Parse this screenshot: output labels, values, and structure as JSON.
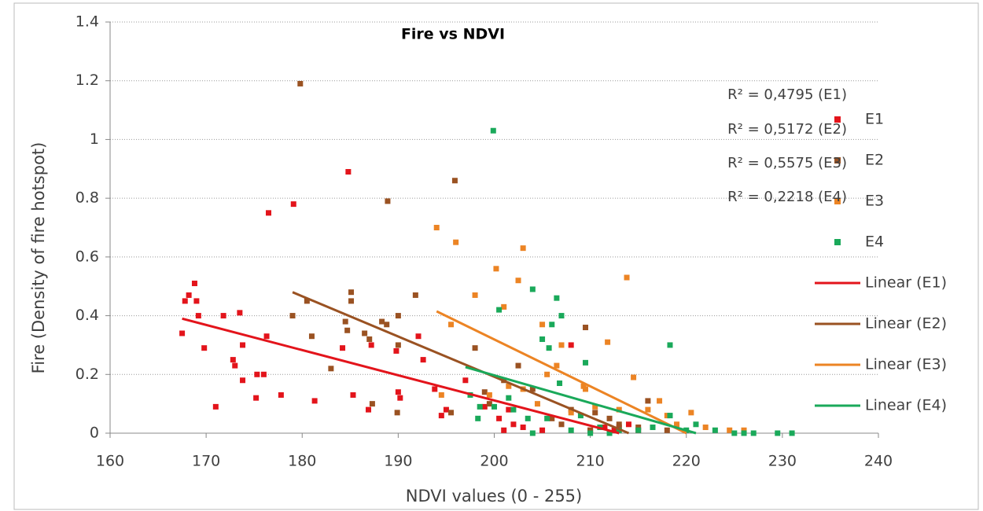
{
  "chart_data": {
    "type": "scatter",
    "title": "Fire vs NDVI",
    "x_label": "NDVI values (0 - 255)",
    "y_label": "Fire (Density of fire hotspot)",
    "xlim": [
      160,
      240
    ],
    "xticks": [
      160,
      170,
      180,
      190,
      200,
      210,
      220,
      230,
      240
    ],
    "ylim": [
      0,
      1.4
    ],
    "yticks": [
      0,
      0.2,
      0.4,
      0.6,
      0.8,
      1,
      1.2,
      1.4
    ],
    "grid": true,
    "legend": "right",
    "series": [
      {
        "name": "E1",
        "color": "#e3141b",
        "x": [
          167.5,
          167.8,
          168.2,
          168.8,
          169,
          169.2,
          169.8,
          171,
          171.8,
          172.8,
          173,
          173.5,
          173.8,
          173.8,
          175.2,
          175.3,
          176,
          176.3,
          176.5,
          177.8,
          179.1,
          181.3,
          184.2,
          184.8,
          185.3,
          186.9,
          187.2,
          189.8,
          190,
          190.2,
          192.1,
          192.6,
          193.8,
          194.5,
          195,
          197,
          199,
          200.5,
          201,
          201.5,
          202,
          203,
          205,
          208,
          210,
          211.5,
          212.5,
          213,
          214,
          215
        ],
        "values": [
          0.34,
          0.45,
          0.47,
          0.51,
          0.45,
          0.4,
          0.29,
          0.09,
          0.4,
          0.25,
          0.23,
          0.41,
          0.3,
          0.18,
          0.12,
          0.2,
          0.2,
          0.33,
          0.75,
          0.13,
          0.78,
          0.11,
          0.29,
          0.89,
          0.13,
          0.08,
          0.3,
          0.28,
          0.14,
          0.12,
          0.33,
          0.25,
          0.15,
          0.06,
          0.08,
          0.18,
          0.09,
          0.05,
          0.01,
          0.08,
          0.03,
          0.02,
          0.01,
          0.3,
          0.01,
          0.02,
          0.01,
          0.02,
          0.03,
          0.01
        ]
      },
      {
        "name": "E2",
        "color": "#9a5222",
        "x": [
          179.8,
          179,
          180.5,
          181,
          183,
          184.5,
          184.7,
          185.1,
          185.1,
          186.5,
          187,
          187.3,
          188.3,
          188.9,
          188.8,
          190,
          190,
          189.9,
          191.8,
          195.5,
          195.9,
          198,
          199,
          199.5,
          201,
          202.5,
          204,
          206,
          207,
          208,
          209.5,
          210.5,
          212,
          213,
          215,
          216,
          218,
          210
        ],
        "values": [
          1.19,
          0.4,
          0.45,
          0.33,
          0.22,
          0.38,
          0.35,
          0.48,
          0.45,
          0.34,
          0.32,
          0.1,
          0.38,
          0.79,
          0.37,
          0.4,
          0.3,
          0.07,
          0.47,
          0.07,
          0.86,
          0.29,
          0.14,
          0.1,
          0.18,
          0.23,
          0.15,
          0.05,
          0.03,
          0.08,
          0.36,
          0.07,
          0.05,
          0.03,
          0.02,
          0.11,
          0.01,
          0.01
        ]
      },
      {
        "name": "E3",
        "color": "#ec8424",
        "x": [
          194,
          195.5,
          196,
          194.5,
          198,
          199.5,
          200.2,
          201,
          201.5,
          202.5,
          203,
          203,
          204.5,
          205,
          205.5,
          206.5,
          207,
          208,
          209.3,
          209.5,
          210.5,
          211.8,
          213.8,
          214.5,
          216,
          217.2,
          218,
          219,
          220.5,
          222,
          224.5,
          226,
          213
        ],
        "values": [
          0.7,
          0.37,
          0.65,
          0.13,
          0.47,
          0.13,
          0.56,
          0.43,
          0.16,
          0.52,
          0.63,
          0.15,
          0.1,
          0.37,
          0.2,
          0.23,
          0.3,
          0.07,
          0.16,
          0.15,
          0.09,
          0.31,
          0.53,
          0.19,
          0.08,
          0.11,
          0.06,
          0.03,
          0.07,
          0.02,
          0.01,
          0.01,
          0.08
        ]
      },
      {
        "name": "E4",
        "color": "#1aa95a",
        "x": [
          199.9,
          200.5,
          204,
          205,
          206,
          206.5,
          207,
          205.7,
          209.5,
          197.5,
          198.3,
          198.5,
          200,
          201.5,
          202,
          203.5,
          205.5,
          206.8,
          208,
          209,
          211,
          213,
          215,
          216.5,
          218.3,
          218.3,
          220,
          221,
          223,
          225,
          226,
          227,
          229.5,
          231,
          212,
          210,
          204
        ],
        "values": [
          1.03,
          0.42,
          0.49,
          0.32,
          0.37,
          0.46,
          0.4,
          0.29,
          0.24,
          0.13,
          0.05,
          0.09,
          0.09,
          0.12,
          0.08,
          0.05,
          0.05,
          0.17,
          0.01,
          0.06,
          0.02,
          0.01,
          0.01,
          0.02,
          0.3,
          0.06,
          0.01,
          0.03,
          0.01,
          0,
          0,
          0,
          0,
          0,
          0,
          0,
          0
        ]
      }
    ],
    "trendlines": [
      {
        "name": "Linear (E1)",
        "color": "#e3141b",
        "x": [
          167.5,
          213
        ],
        "values": [
          0.39,
          0
        ]
      },
      {
        "name": "Linear (E2)",
        "color": "#9a5222",
        "x": [
          179,
          214
        ],
        "values": [
          0.48,
          0
        ]
      },
      {
        "name": "Linear (E3)",
        "color": "#ec8424",
        "x": [
          194,
          220
        ],
        "values": [
          0.415,
          0
        ]
      },
      {
        "name": "Linear (E4)",
        "color": "#1aa95a",
        "x": [
          197,
          221
        ],
        "values": [
          0.225,
          0
        ]
      }
    ],
    "annotations": [
      "R² = 0,4795 (E1)",
      "R² = 0,5172 (E2)",
      "R² = 0,5575 (E3)",
      "R² = 0,2218 (E4)"
    ]
  }
}
